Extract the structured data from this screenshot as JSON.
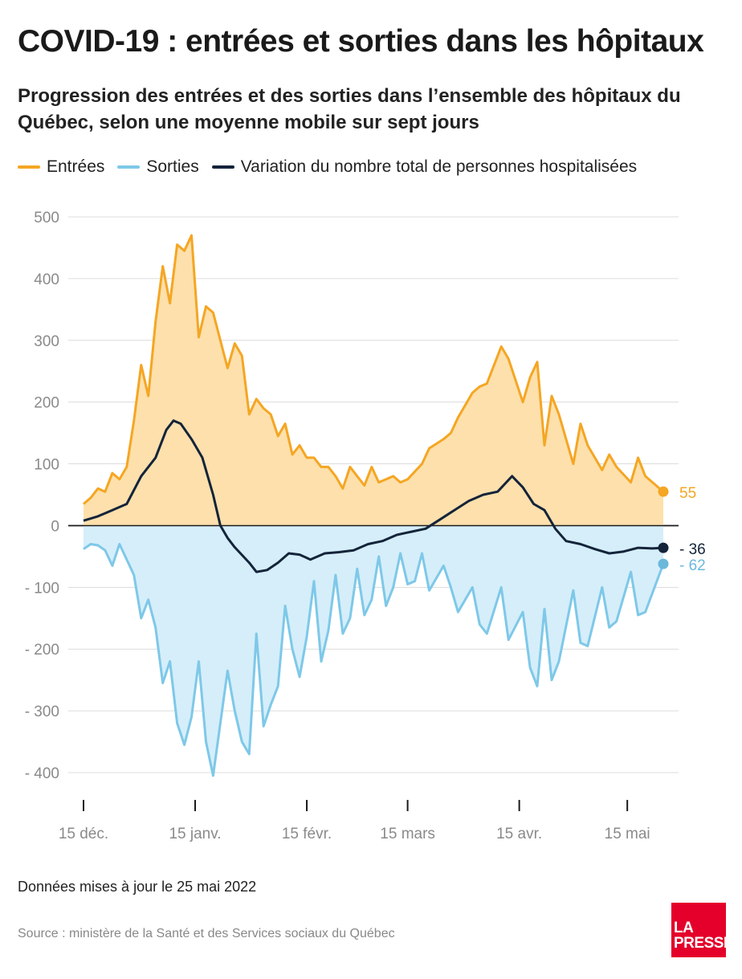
{
  "title": "COVID-19 : entrées et sorties dans les hôpitaux",
  "subtitle": "Progression des entrées et des sorties dans l’ensemble des hôpitaux du Québec, selon une moyenne mobile sur sept jours",
  "note": "Données mises à jour le 25 mai 2022",
  "source": "Source : ministère de la Santé et des Services sociaux du Québec",
  "logo": {
    "line1": "LA",
    "line2": "PRESSE"
  },
  "colors": {
    "entrees": "#f5a623",
    "entrees_fill": "#fde0ac",
    "sorties": "#7ec8e8",
    "sorties_fill": "#d5eefa",
    "variation": "#14243a",
    "grid": "#dcdcdc"
  },
  "chart_data": {
    "type": "line",
    "x_unit": "date (days)",
    "x_start": "2021-12-15",
    "x_end": "2022-05-25",
    "ylim": [
      -400,
      500
    ],
    "yticks": [
      500,
      400,
      300,
      200,
      100,
      0,
      -100,
      -200,
      -300,
      -400
    ],
    "ytick_labels": [
      "500",
      "400",
      "300",
      "200",
      "100",
      "0",
      "- 100",
      "- 200",
      "- 300",
      "- 400"
    ],
    "xticks": [
      {
        "date": "2021-12-15",
        "label": "15 déc."
      },
      {
        "date": "2022-01-15",
        "label": "15 janv."
      },
      {
        "date": "2022-02-15",
        "label": "15 févr."
      },
      {
        "date": "2022-03-15",
        "label": "15 mars"
      },
      {
        "date": "2022-04-15",
        "label": "15 avr."
      },
      {
        "date": "2022-05-15",
        "label": "15 mai"
      }
    ],
    "legend": [
      "Entrées",
      "Sorties",
      "Variation du nombre total de personnes hospitalisées"
    ],
    "legend_position": "top",
    "grid": true,
    "series": [
      {
        "name": "Entrées",
        "color": "#f5a623",
        "points": [
          [
            "2021-12-15",
            35
          ],
          [
            "2021-12-17",
            45
          ],
          [
            "2021-12-19",
            60
          ],
          [
            "2021-12-21",
            55
          ],
          [
            "2021-12-23",
            85
          ],
          [
            "2021-12-25",
            75
          ],
          [
            "2021-12-27",
            95
          ],
          [
            "2021-12-29",
            170
          ],
          [
            "2021-12-31",
            260
          ],
          [
            "2022-01-02",
            210
          ],
          [
            "2022-01-04",
            330
          ],
          [
            "2022-01-06",
            420
          ],
          [
            "2022-01-08",
            360
          ],
          [
            "2022-01-10",
            455
          ],
          [
            "2022-01-12",
            445
          ],
          [
            "2022-01-14",
            470
          ],
          [
            "2022-01-16",
            305
          ],
          [
            "2022-01-18",
            355
          ],
          [
            "2022-01-20",
            345
          ],
          [
            "2022-01-22",
            300
          ],
          [
            "2022-01-24",
            255
          ],
          [
            "2022-01-26",
            295
          ],
          [
            "2022-01-28",
            275
          ],
          [
            "2022-01-30",
            180
          ],
          [
            "2022-02-01",
            205
          ],
          [
            "2022-02-03",
            190
          ],
          [
            "2022-02-05",
            180
          ],
          [
            "2022-02-07",
            145
          ],
          [
            "2022-02-09",
            165
          ],
          [
            "2022-02-11",
            115
          ],
          [
            "2022-02-13",
            130
          ],
          [
            "2022-02-15",
            110
          ],
          [
            "2022-02-17",
            110
          ],
          [
            "2022-02-19",
            95
          ],
          [
            "2022-02-21",
            95
          ],
          [
            "2022-02-23",
            80
          ],
          [
            "2022-02-25",
            60
          ],
          [
            "2022-02-27",
            95
          ],
          [
            "2022-03-01",
            80
          ],
          [
            "2022-03-03",
            65
          ],
          [
            "2022-03-05",
            95
          ],
          [
            "2022-03-07",
            70
          ],
          [
            "2022-03-11",
            80
          ],
          [
            "2022-03-13",
            70
          ],
          [
            "2022-03-15",
            75
          ],
          [
            "2022-03-19",
            100
          ],
          [
            "2022-03-21",
            125
          ],
          [
            "2022-03-25",
            140
          ],
          [
            "2022-03-27",
            150
          ],
          [
            "2022-03-29",
            175
          ],
          [
            "2022-04-02",
            215
          ],
          [
            "2022-04-04",
            225
          ],
          [
            "2022-04-06",
            230
          ],
          [
            "2022-04-10",
            290
          ],
          [
            "2022-04-12",
            270
          ],
          [
            "2022-04-16",
            200
          ],
          [
            "2022-04-18",
            240
          ],
          [
            "2022-04-20",
            265
          ],
          [
            "2022-04-22",
            130
          ],
          [
            "2022-04-24",
            210
          ],
          [
            "2022-04-26",
            180
          ],
          [
            "2022-04-30",
            100
          ],
          [
            "2022-05-02",
            165
          ],
          [
            "2022-05-04",
            130
          ],
          [
            "2022-05-08",
            90
          ],
          [
            "2022-05-10",
            115
          ],
          [
            "2022-05-12",
            95
          ],
          [
            "2022-05-16",
            70
          ],
          [
            "2022-05-18",
            110
          ],
          [
            "2022-05-20",
            80
          ],
          [
            "2022-05-25",
            55
          ]
        ]
      },
      {
        "name": "Sorties",
        "color": "#7ec8e8",
        "points": [
          [
            "2021-12-15",
            -38
          ],
          [
            "2021-12-17",
            -30
          ],
          [
            "2021-12-19",
            -32
          ],
          [
            "2021-12-21",
            -40
          ],
          [
            "2021-12-23",
            -65
          ],
          [
            "2021-12-25",
            -30
          ],
          [
            "2021-12-27",
            -55
          ],
          [
            "2021-12-29",
            -80
          ],
          [
            "2021-12-31",
            -150
          ],
          [
            "2022-01-02",
            -120
          ],
          [
            "2022-01-04",
            -165
          ],
          [
            "2022-01-06",
            -255
          ],
          [
            "2022-01-08",
            -220
          ],
          [
            "2022-01-10",
            -320
          ],
          [
            "2022-01-12",
            -355
          ],
          [
            "2022-01-14",
            -310
          ],
          [
            "2022-01-16",
            -220
          ],
          [
            "2022-01-18",
            -350
          ],
          [
            "2022-01-20",
            -405
          ],
          [
            "2022-01-22",
            -320
          ],
          [
            "2022-01-24",
            -235
          ],
          [
            "2022-01-26",
            -300
          ],
          [
            "2022-01-28",
            -350
          ],
          [
            "2022-01-30",
            -370
          ],
          [
            "2022-02-01",
            -175
          ],
          [
            "2022-02-03",
            -325
          ],
          [
            "2022-02-05",
            -290
          ],
          [
            "2022-02-07",
            -260
          ],
          [
            "2022-02-09",
            -130
          ],
          [
            "2022-02-11",
            -200
          ],
          [
            "2022-02-13",
            -245
          ],
          [
            "2022-02-15",
            -180
          ],
          [
            "2022-02-17",
            -90
          ],
          [
            "2022-02-19",
            -220
          ],
          [
            "2022-02-21",
            -170
          ],
          [
            "2022-02-23",
            -80
          ],
          [
            "2022-02-25",
            -175
          ],
          [
            "2022-02-27",
            -150
          ],
          [
            "2022-03-01",
            -70
          ],
          [
            "2022-03-03",
            -145
          ],
          [
            "2022-03-05",
            -120
          ],
          [
            "2022-03-07",
            -50
          ],
          [
            "2022-03-09",
            -130
          ],
          [
            "2022-03-11",
            -100
          ],
          [
            "2022-03-13",
            -45
          ],
          [
            "2022-03-15",
            -95
          ],
          [
            "2022-03-17",
            -90
          ],
          [
            "2022-03-19",
            -45
          ],
          [
            "2022-03-21",
            -105
          ],
          [
            "2022-03-25",
            -65
          ],
          [
            "2022-03-27",
            -100
          ],
          [
            "2022-03-29",
            -140
          ],
          [
            "2022-04-02",
            -100
          ],
          [
            "2022-04-04",
            -160
          ],
          [
            "2022-04-06",
            -175
          ],
          [
            "2022-04-10",
            -100
          ],
          [
            "2022-04-12",
            -185
          ],
          [
            "2022-04-16",
            -140
          ],
          [
            "2022-04-18",
            -230
          ],
          [
            "2022-04-20",
            -260
          ],
          [
            "2022-04-22",
            -135
          ],
          [
            "2022-04-24",
            -250
          ],
          [
            "2022-04-26",
            -220
          ],
          [
            "2022-04-30",
            -105
          ],
          [
            "2022-05-02",
            -190
          ],
          [
            "2022-05-04",
            -195
          ],
          [
            "2022-05-08",
            -100
          ],
          [
            "2022-05-10",
            -165
          ],
          [
            "2022-05-12",
            -155
          ],
          [
            "2022-05-16",
            -75
          ],
          [
            "2022-05-18",
            -145
          ],
          [
            "2022-05-20",
            -140
          ],
          [
            "2022-05-25",
            -62
          ]
        ]
      },
      {
        "name": "Variation du nombre total de personnes hospitalisées",
        "color": "#14243a",
        "points": [
          [
            "2021-12-15",
            8
          ],
          [
            "2021-12-19",
            15
          ],
          [
            "2021-12-23",
            25
          ],
          [
            "2021-12-27",
            35
          ],
          [
            "2021-12-31",
            80
          ],
          [
            "2022-01-04",
            110
          ],
          [
            "2022-01-07",
            155
          ],
          [
            "2022-01-09",
            170
          ],
          [
            "2022-01-11",
            165
          ],
          [
            "2022-01-14",
            140
          ],
          [
            "2022-01-17",
            110
          ],
          [
            "2022-01-20",
            50
          ],
          [
            "2022-01-22",
            0
          ],
          [
            "2022-01-24",
            -20
          ],
          [
            "2022-01-26",
            -35
          ],
          [
            "2022-01-30",
            -60
          ],
          [
            "2022-02-01",
            -75
          ],
          [
            "2022-02-04",
            -72
          ],
          [
            "2022-02-07",
            -60
          ],
          [
            "2022-02-10",
            -45
          ],
          [
            "2022-02-13",
            -47
          ],
          [
            "2022-02-16",
            -55
          ],
          [
            "2022-02-20",
            -45
          ],
          [
            "2022-02-24",
            -43
          ],
          [
            "2022-02-28",
            -40
          ],
          [
            "2022-03-04",
            -30
          ],
          [
            "2022-03-08",
            -25
          ],
          [
            "2022-03-12",
            -15
          ],
          [
            "2022-03-16",
            -10
          ],
          [
            "2022-03-20",
            -5
          ],
          [
            "2022-03-24",
            10
          ],
          [
            "2022-03-28",
            25
          ],
          [
            "2022-04-01",
            40
          ],
          [
            "2022-04-05",
            50
          ],
          [
            "2022-04-09",
            55
          ],
          [
            "2022-04-13",
            80
          ],
          [
            "2022-04-16",
            62
          ],
          [
            "2022-04-19",
            35
          ],
          [
            "2022-04-22",
            25
          ],
          [
            "2022-04-25",
            -5
          ],
          [
            "2022-04-28",
            -25
          ],
          [
            "2022-05-02",
            -30
          ],
          [
            "2022-05-06",
            -38
          ],
          [
            "2022-05-10",
            -45
          ],
          [
            "2022-05-14",
            -42
          ],
          [
            "2022-05-18",
            -36
          ],
          [
            "2022-05-22",
            -37
          ],
          [
            "2022-05-25",
            -36
          ]
        ]
      }
    ],
    "end_labels": [
      {
        "series": "Entrées",
        "value": 55,
        "label": "55"
      },
      {
        "series": "Variation du nombre total de personnes hospitalisées",
        "value": -36,
        "label": "- 36"
      },
      {
        "series": "Sorties",
        "value": -62,
        "label": "- 62"
      }
    ]
  }
}
